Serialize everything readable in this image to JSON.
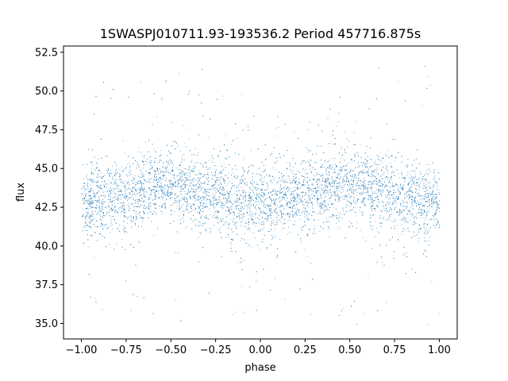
{
  "chart_data": {
    "type": "scatter",
    "title": "1SWASPJ010711.93-193536.2 Period 457716.875s",
    "xlabel": "phase",
    "ylabel": "flux",
    "xlim": [
      -1.1,
      1.1
    ],
    "ylim": [
      34.0,
      52.9
    ],
    "xticks": [
      -1.0,
      -0.75,
      -0.5,
      -0.25,
      0.0,
      0.25,
      0.5,
      0.75,
      1.0
    ],
    "xtick_labels": [
      "−1.00",
      "−0.75",
      "−0.50",
      "−0.25",
      "0.00",
      "0.25",
      "0.50",
      "0.75",
      "1.00"
    ],
    "yticks": [
      35.0,
      37.5,
      40.0,
      42.5,
      45.0,
      47.5,
      50.0,
      52.5
    ],
    "ytick_labels": [
      "35.0",
      "37.5",
      "40.0",
      "42.5",
      "45.0",
      "47.5",
      "50.0",
      "52.5"
    ],
    "grid": false,
    "point_color": "#1f77b4",
    "series": [
      {
        "x_range": [
          -1.0,
          1.0
        ],
        "y_range": [
          34.8,
          51.7
        ],
        "mean_flux": [
          [
            -1.0,
            42.8
          ],
          [
            -0.9,
            43.1
          ],
          [
            -0.8,
            43.0
          ],
          [
            -0.7,
            43.6
          ],
          [
            -0.6,
            44.0
          ],
          [
            -0.5,
            43.9
          ],
          [
            -0.4,
            43.8
          ],
          [
            -0.3,
            43.4
          ],
          [
            -0.2,
            43.1
          ],
          [
            -0.1,
            42.8
          ],
          [
            0.0,
            42.7
          ],
          [
            0.1,
            42.9
          ],
          [
            0.2,
            43.2
          ],
          [
            0.3,
            43.6
          ],
          [
            0.4,
            44.0
          ],
          [
            0.5,
            43.9
          ],
          [
            0.6,
            43.8
          ],
          [
            0.7,
            43.4
          ],
          [
            0.8,
            43.2
          ],
          [
            0.9,
            42.9
          ],
          [
            1.0,
            42.8
          ]
        ]
      }
    ]
  }
}
